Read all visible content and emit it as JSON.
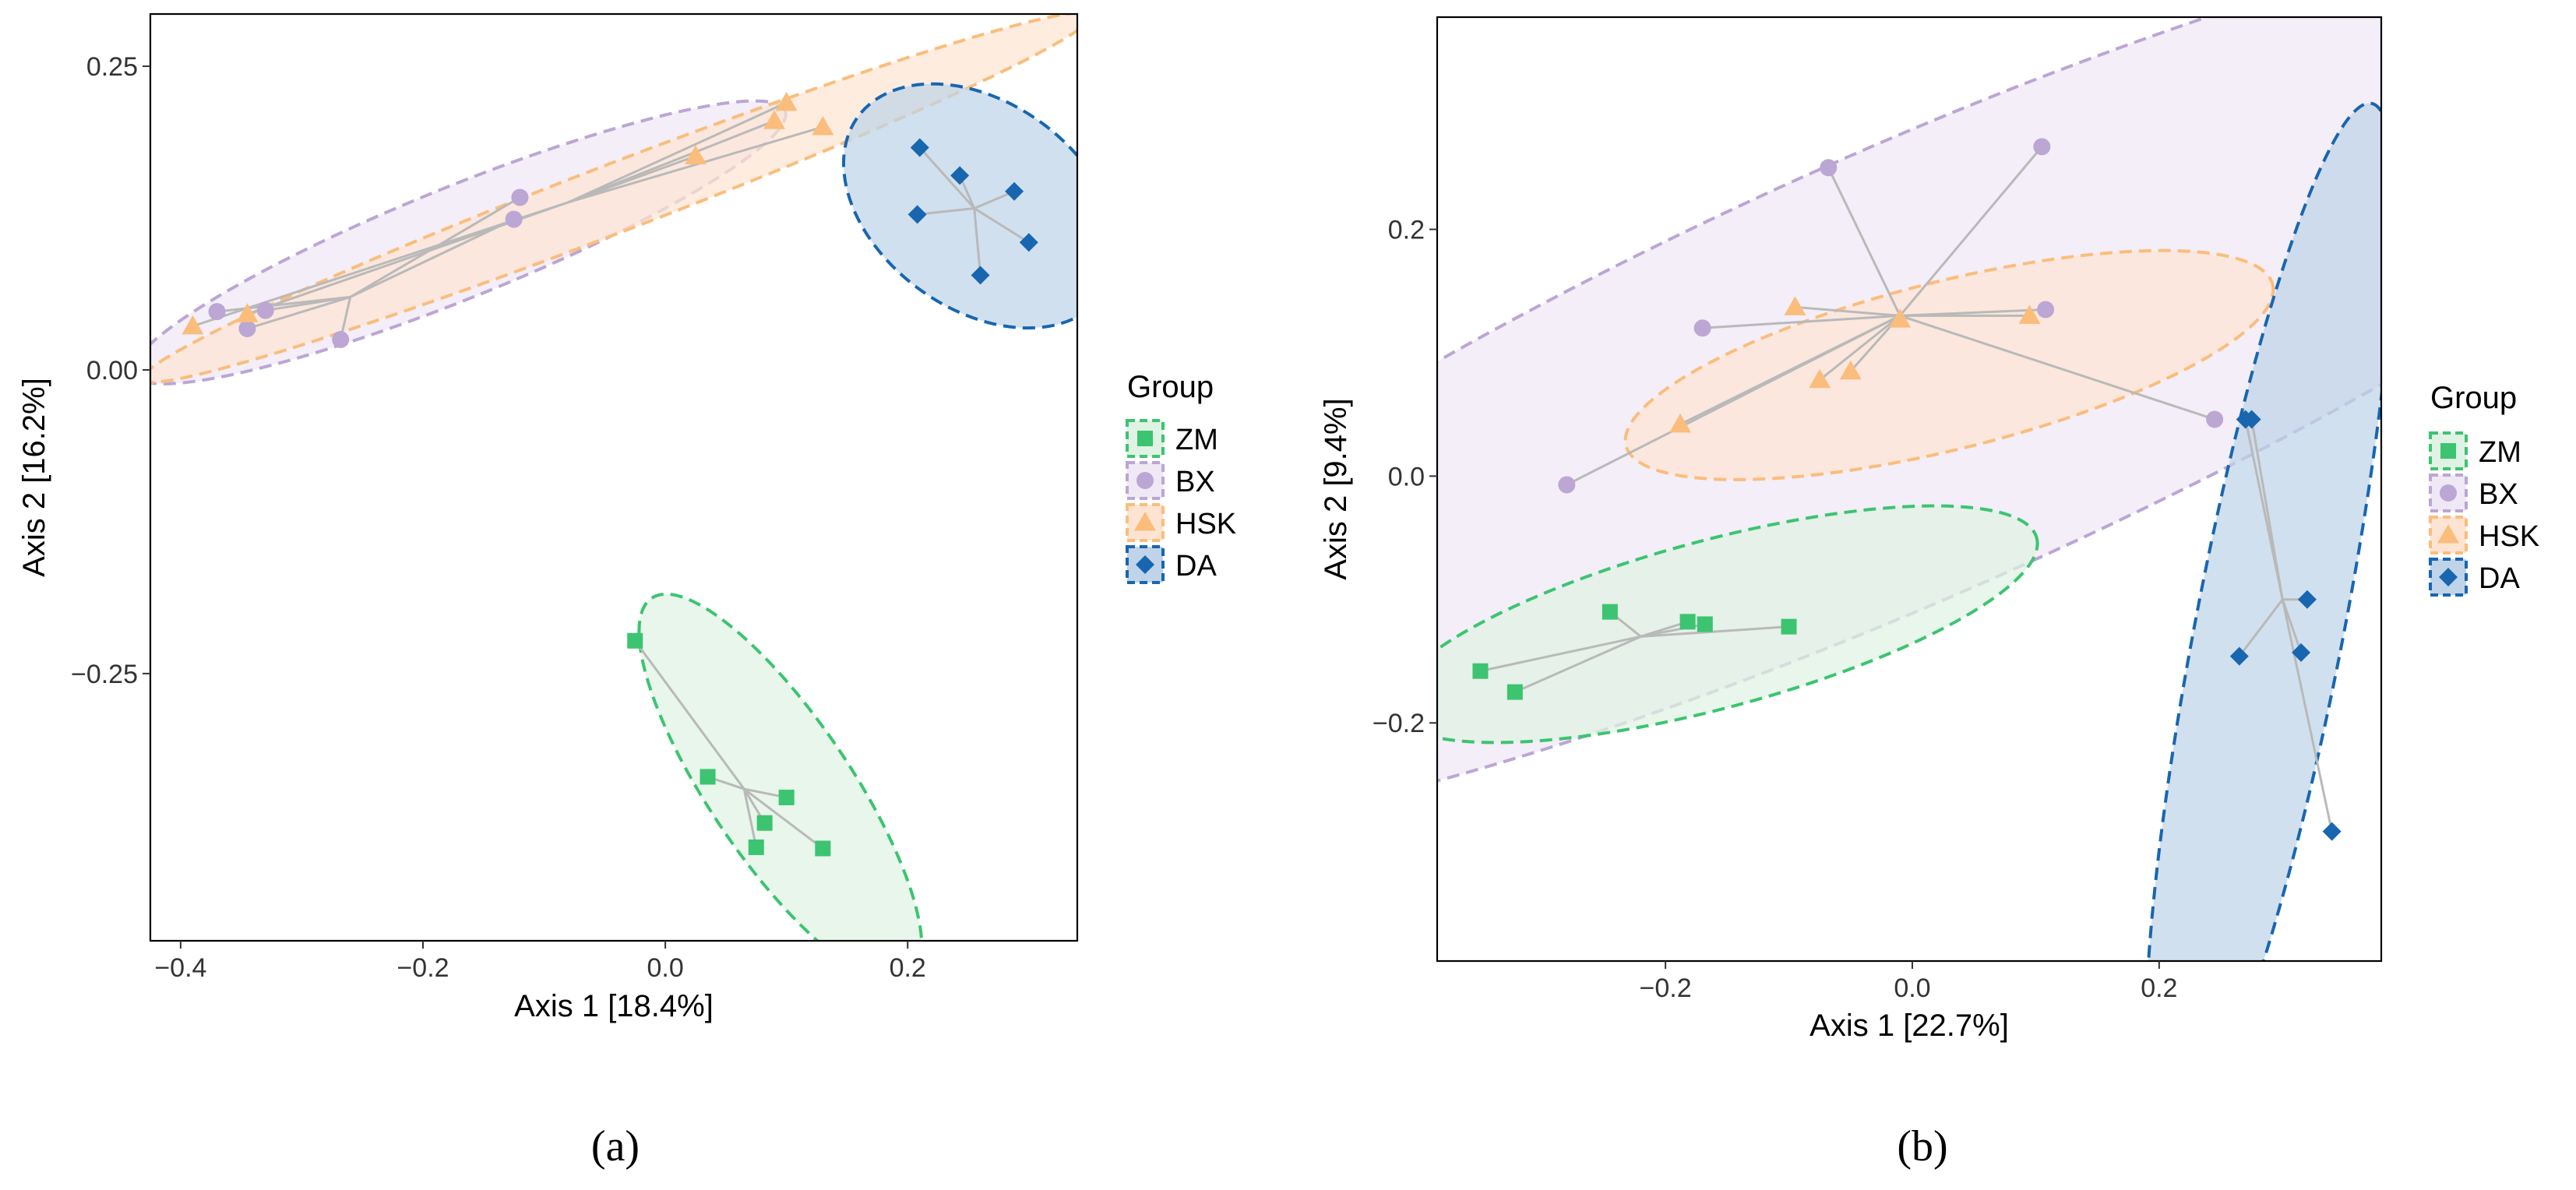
{
  "groups": [
    {
      "name": "ZM",
      "color": "#3cc470",
      "fill": "#dff2e3",
      "shape": "square"
    },
    {
      "name": "BX",
      "color": "#bba6d4",
      "fill": "#efe8f5",
      "shape": "circle"
    },
    {
      "name": "HSK",
      "color": "#fbbd7c",
      "fill": "#fde4d2",
      "shape": "triangle"
    },
    {
      "name": "DA",
      "color": "#1866b0",
      "fill": "#bfd4e8",
      "shape": "diamond"
    }
  ],
  "legend_title": "Group",
  "chart_data": [
    {
      "type": "scatter",
      "panel": "(a)",
      "caption": "(a)",
      "xlabel": "Axis 1 [18.4%]",
      "ylabel": "Axis 2 [16.2%]",
      "xlim": [
        -0.425,
        0.34
      ],
      "ylim": [
        -0.47,
        0.293
      ],
      "xticks": [
        -0.4,
        -0.2,
        0.0,
        0.2
      ],
      "xtick_labels": [
        "−0.4",
        "−0.2",
        "0.0",
        "0.2"
      ],
      "yticks": [
        0.25,
        0.0,
        -0.25
      ],
      "ytick_labels": [
        "0.25",
        "0.00",
        "−0.25"
      ],
      "series": [
        {
          "group": "ZM",
          "ellipse": {
            "cx": 0.095,
            "cy": -0.345,
            "a": 0.19,
            "b": 0.058,
            "angle_deg": -56
          },
          "centroid": [
            0.065,
            -0.345
          ],
          "points": [
            [
              -0.025,
              -0.223
            ],
            [
              0.035,
              -0.335
            ],
            [
              0.1,
              -0.352
            ],
            [
              0.082,
              -0.373
            ],
            [
              0.075,
              -0.393
            ],
            [
              0.13,
              -0.394
            ]
          ]
        },
        {
          "group": "BX",
          "ellipse": {
            "cx": -0.17,
            "cy": 0.105,
            "a": 0.29,
            "b": 0.046,
            "angle_deg": 22
          },
          "centroid": [
            -0.26,
            0.06
          ],
          "points": [
            [
              -0.12,
              0.142
            ],
            [
              -0.125,
              0.124
            ],
            [
              -0.37,
              0.048
            ],
            [
              -0.33,
              0.049
            ],
            [
              -0.345,
              0.034
            ],
            [
              -0.268,
              0.025
            ]
          ]
        },
        {
          "group": "HSK",
          "ellipse": {
            "cx": -0.04,
            "cy": 0.142,
            "a": 0.42,
            "b": 0.028,
            "angle_deg": 21
          },
          "centroid": [
            -0.08,
            0.138
          ],
          "points": [
            [
              0.1,
              0.22
            ],
            [
              0.09,
              0.205
            ],
            [
              0.13,
              0.2
            ],
            [
              0.025,
              0.176
            ],
            [
              -0.39,
              0.036
            ],
            [
              -0.345,
              0.046
            ]
          ]
        },
        {
          "group": "DA",
          "ellipse": {
            "cx": 0.26,
            "cy": 0.135,
            "a": 0.125,
            "b": 0.085,
            "angle_deg": -36
          },
          "centroid": [
            0.255,
            0.133
          ],
          "points": [
            [
              0.21,
              0.183
            ],
            [
              0.243,
              0.16
            ],
            [
              0.288,
              0.147
            ],
            [
              0.208,
              0.128
            ],
            [
              0.3,
              0.105
            ],
            [
              0.26,
              0.078
            ]
          ]
        }
      ]
    },
    {
      "type": "scatter",
      "panel": "(b)",
      "caption": "(b)",
      "xlabel": "Axis 1 [22.7%]",
      "ylabel": "Axis 2 [9.4%]",
      "xlim": [
        -0.385,
        0.38
      ],
      "ylim": [
        -0.393,
        0.372
      ],
      "xticks": [
        -0.2,
        0.0,
        0.2
      ],
      "xtick_labels": [
        "−0.2",
        "0.0",
        "0.2"
      ],
      "yticks": [
        0.2,
        0.0,
        -0.2
      ],
      "ytick_labels": [
        "0.2",
        "0.0",
        "−0.2"
      ],
      "series": [
        {
          "group": "BX",
          "ellipse": {
            "cx": 0.0,
            "cy": 0.085,
            "a": 0.84,
            "b": 0.18,
            "angle_deg": 24
          },
          "centroid": [
            -0.01,
            0.13
          ],
          "points": [
            [
              -0.068,
              0.25
            ],
            [
              0.105,
              0.267
            ],
            [
              -0.17,
              0.12
            ],
            [
              0.108,
              0.135
            ],
            [
              0.245,
              0.046
            ],
            [
              -0.28,
              -0.007
            ]
          ]
        },
        {
          "group": "HSK",
          "ellipse": {
            "cx": 0.03,
            "cy": 0.09,
            "a": 0.27,
            "b": 0.068,
            "angle_deg": 14
          },
          "centroid": [
            -0.01,
            0.13
          ],
          "points": [
            [
              -0.095,
              0.137
            ],
            [
              -0.01,
              0.127
            ],
            [
              0.095,
              0.13
            ],
            [
              -0.05,
              0.085
            ],
            [
              -0.075,
              0.078
            ],
            [
              -0.188,
              0.042
            ]
          ]
        },
        {
          "group": "ZM",
          "ellipse": {
            "cx": -0.16,
            "cy": -0.12,
            "a": 0.27,
            "b": 0.068,
            "angle_deg": 15
          },
          "centroid": [
            -0.22,
            -0.13
          ],
          "points": [
            [
              -0.245,
              -0.11
            ],
            [
              -0.182,
              -0.118
            ],
            [
              -0.168,
              -0.12
            ],
            [
              -0.1,
              -0.122
            ],
            [
              -0.35,
              -0.158
            ],
            [
              -0.322,
              -0.175
            ]
          ]
        },
        {
          "group": "DA",
          "ellipse": {
            "cx": 0.29,
            "cy": -0.12,
            "a": 0.43,
            "b": 0.06,
            "angle_deg": 79
          },
          "centroid": [
            0.3,
            -0.1
          ],
          "points": [
            [
              0.27,
              0.046
            ],
            [
              0.275,
              0.046
            ],
            [
              0.32,
              -0.1
            ],
            [
              0.265,
              -0.146
            ],
            [
              0.315,
              -0.143
            ],
            [
              0.34,
              -0.288
            ]
          ]
        }
      ]
    }
  ]
}
